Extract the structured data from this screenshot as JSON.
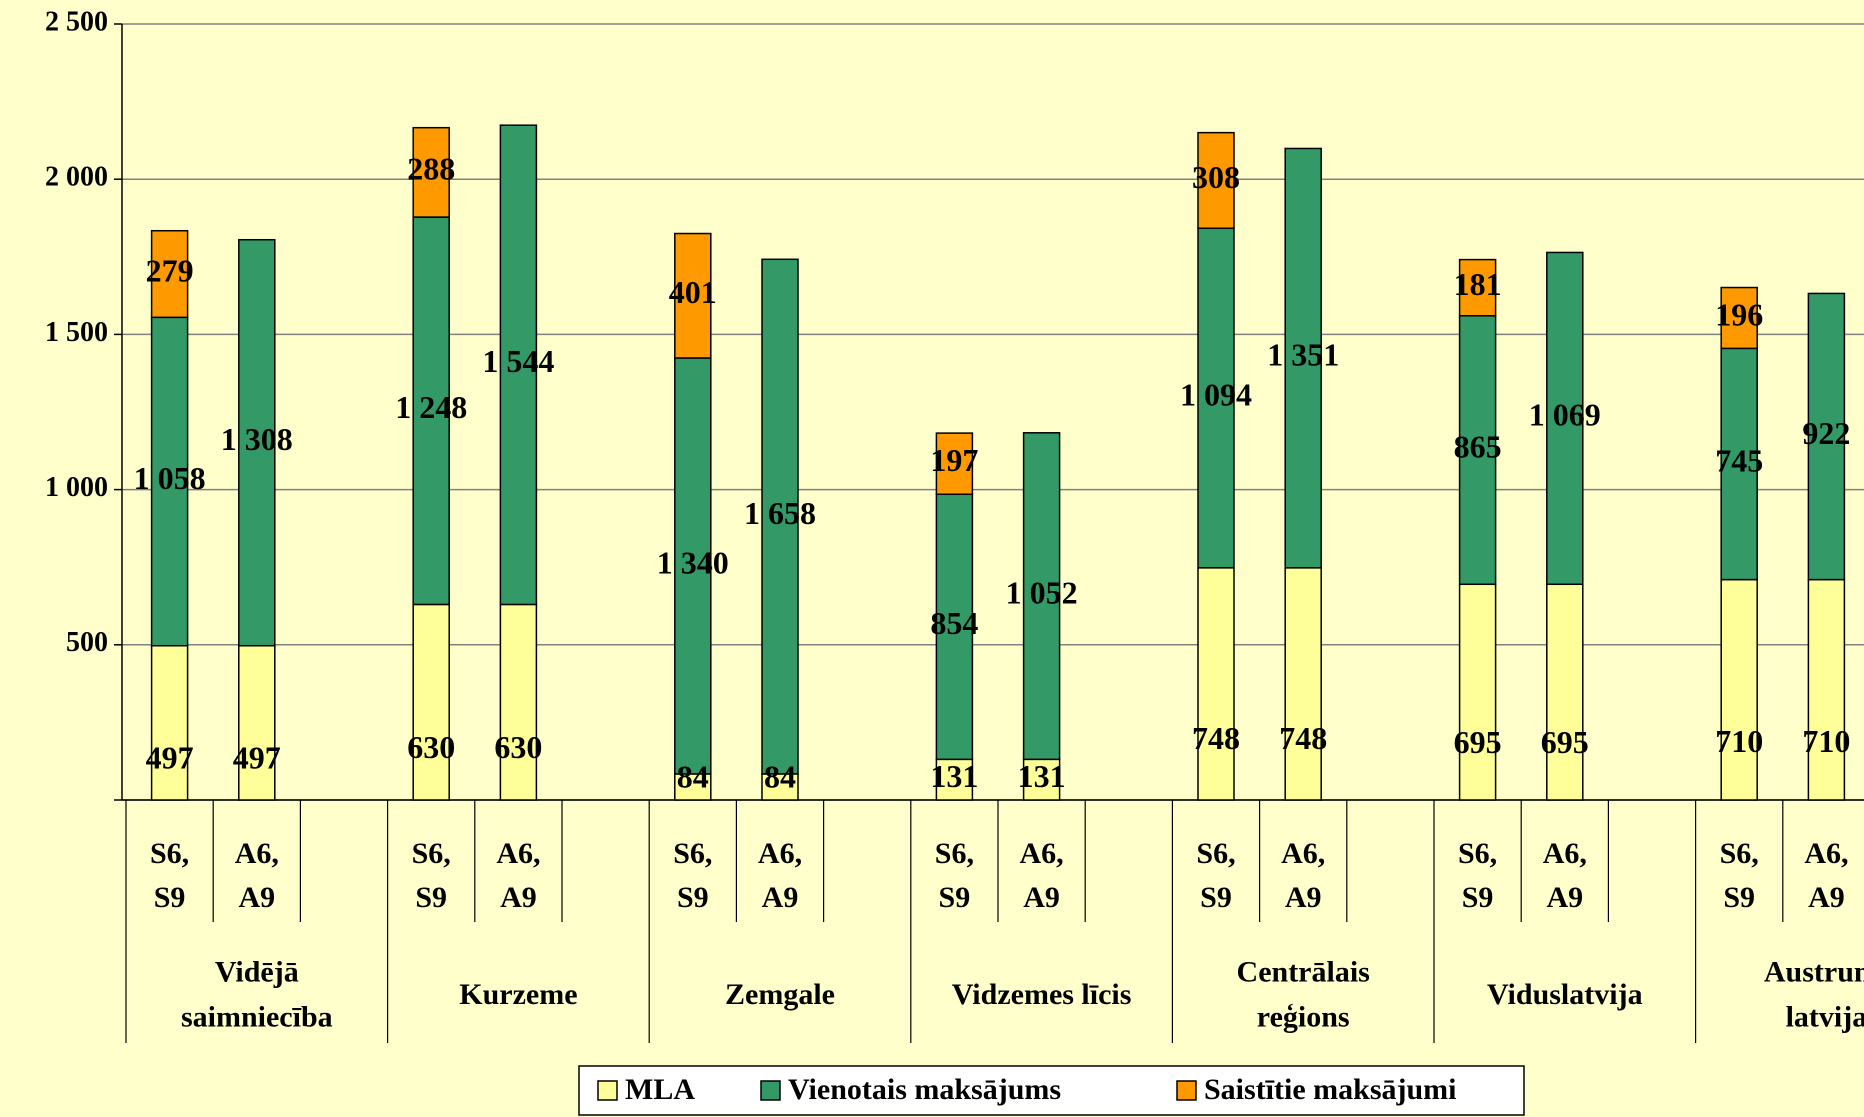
{
  "chart_data": {
    "type": "stacked_bar",
    "ylim": [
      0,
      2500
    ],
    "yticks": [
      0,
      500,
      {
        "value": 1000,
        "label": "1 000"
      },
      {
        "value": 1500,
        "label": "1 500"
      },
      {
        "value": 2000,
        "label": "2 000"
      },
      {
        "value": 2500,
        "label": "2 500"
      }
    ],
    "grid": true,
    "legend": "bottom",
    "categories": [
      "S6,\nS9",
      "A6,\nA9",
      null,
      "S6,\nS9",
      "A6,\nA9",
      null,
      "S6,\nS9",
      "A6,\nA9",
      null,
      "S6,\nS9",
      "A6,\nA9",
      null,
      "S6,\nS9",
      "A6,\nA9",
      null,
      "S6,\nS9",
      "A6,\nA9",
      null,
      "S6,\nS9",
      "A6,\nA9"
    ],
    "groups": [
      "Vidējā\nsaimniecība",
      "Kurzeme",
      "Zemgale",
      "Vidzemes līcis",
      "Centrālais\nreģions",
      "Viduslatvija",
      "Austrum-\nlatvija"
    ],
    "series": [
      {
        "name": "MLA",
        "color": "#ffff99",
        "values": [
          497,
          497,
          null,
          630,
          630,
          null,
          84,
          84,
          null,
          131,
          131,
          null,
          748,
          748,
          null,
          695,
          695,
          null,
          710,
          710
        ],
        "value_labels": [
          "497",
          "497",
          null,
          "630",
          "630",
          null,
          "84",
          "84",
          null,
          "131",
          "131",
          null,
          "748",
          "748",
          null,
          "695",
          "695",
          null,
          "710",
          "710"
        ]
      },
      {
        "name": "Vienotais maksājums",
        "color": "#339966",
        "values": [
          1058,
          1308,
          null,
          1248,
          1544,
          null,
          1340,
          1658,
          null,
          854,
          1052,
          null,
          1094,
          1351,
          null,
          865,
          1069,
          null,
          745,
          922
        ],
        "value_labels": [
          "1 058",
          "1 308",
          null,
          "1 248",
          "1 544",
          null,
          "1 340",
          "1 658",
          null,
          "854",
          "1 052",
          null,
          "1 094",
          "1 351",
          null,
          "865",
          "1 069",
          null,
          "745",
          "922"
        ]
      },
      {
        "name": "Saistītie maksājumi",
        "color": "#ff9900",
        "values": [
          279,
          null,
          null,
          288,
          null,
          null,
          401,
          null,
          null,
          197,
          null,
          null,
          308,
          null,
          null,
          181,
          null,
          null,
          196,
          null
        ],
        "value_labels": [
          "279",
          null,
          null,
          "288",
          null,
          null,
          "401",
          null,
          null,
          "197",
          null,
          null,
          "308",
          null,
          null,
          "181",
          null,
          null,
          "196",
          null
        ]
      }
    ]
  }
}
